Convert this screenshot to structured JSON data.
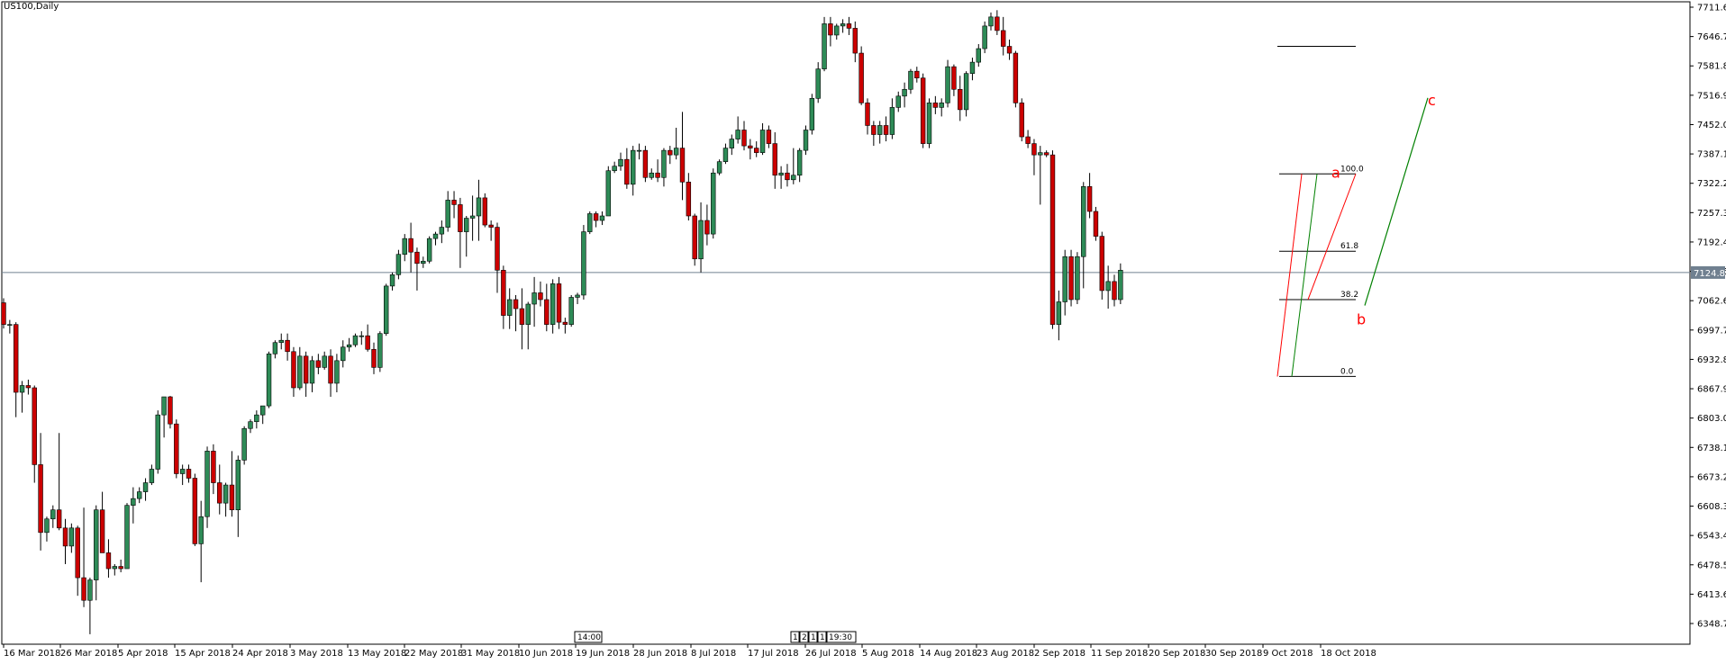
{
  "header": {
    "title": "US100,Daily"
  },
  "colors": {
    "bull": "#2e8b57",
    "bear": "#cc0000",
    "wick": "#000000",
    "grid_line": "#708090",
    "current_label_bg": "#708090",
    "wave_label": "#ff0000",
    "projection": "#008000"
  },
  "chart_data": {
    "type": "candlestick",
    "title": "US100,Daily",
    "ylim": [
      6300,
      7720
    ],
    "y_ticks": [
      "7711.60",
      "7646.70",
      "7581.80",
      "7516.90",
      "7452.00",
      "7387.10",
      "7322.20",
      "7257.30",
      "7192.40",
      "7127.50",
      "7062.60",
      "6997.70",
      "6932.80",
      "6867.90",
      "6803.00",
      "6738.10",
      "6673.20",
      "6608.30",
      "6543.40",
      "6478.50",
      "6413.60",
      "6348.70"
    ],
    "x_ticks": [
      "16 Mar 2018",
      "26 Mar 2018",
      "5 Apr 2018",
      "15 Apr 2018",
      "24 Apr 2018",
      "3 May 2018",
      "13 May 2018",
      "22 May 2018",
      "31 May 2018",
      "10 Jun 2018",
      "19 Jun 2018",
      "28 Jun 2018",
      "8 Jul 2018",
      "17 Jul 2018",
      "26 Jul 2018",
      "5 Aug 2018",
      "14 Aug 2018",
      "23 Aug 2018",
      "2 Sep 2018",
      "11 Sep 2018",
      "20 Sep 2018",
      "30 Sep 2018",
      "9 Oct 2018",
      "18 Oct 2018"
    ],
    "current_price": "7124.87",
    "fib_levels": [
      {
        "label": "100.0",
        "price": 7343
      },
      {
        "label": "61.8",
        "price": 7172
      },
      {
        "label": "38.2",
        "price": 7065
      },
      {
        "label": "0.0",
        "price": 6895
      }
    ],
    "projection_line": {
      "start_price": 7052,
      "end_price": 7511
    },
    "horizontal_line": {
      "price": 7625
    },
    "wave_labels": [
      {
        "text": "a",
        "price": 7345
      },
      {
        "text": "b",
        "price": 7020
      },
      {
        "text": "c",
        "price": 7505
      }
    ],
    "time_markers": [
      "14:00",
      "1",
      "2",
      "1",
      "1",
      "19:30"
    ],
    "candles": [
      [
        7058,
        7068,
        7001,
        7010
      ],
      [
        7010,
        7020,
        6990,
        7010
      ],
      [
        7010,
        7015,
        6805,
        6860
      ],
      [
        6860,
        6885,
        6815,
        6875
      ],
      [
        6875,
        6888,
        6855,
        6870
      ],
      [
        6870,
        6875,
        6660,
        6700
      ],
      [
        6700,
        6770,
        6510,
        6550
      ],
      [
        6550,
        6585,
        6530,
        6580
      ],
      [
        6580,
        6610,
        6560,
        6600
      ],
      [
        6600,
        6770,
        6555,
        6560
      ],
      [
        6560,
        6580,
        6480,
        6520
      ],
      [
        6520,
        6570,
        6505,
        6560
      ],
      [
        6560,
        6565,
        6410,
        6450
      ],
      [
        6450,
        6605,
        6385,
        6400
      ],
      [
        6400,
        6450,
        6325,
        6445
      ],
      [
        6445,
        6610,
        6400,
        6600
      ],
      [
        6600,
        6640,
        6505,
        6505
      ],
      [
        6505,
        6535,
        6450,
        6470
      ],
      [
        6470,
        6480,
        6455,
        6475
      ],
      [
        6475,
        6490,
        6462,
        6470
      ],
      [
        6470,
        6615,
        6470,
        6610
      ],
      [
        6610,
        6650,
        6570,
        6625
      ],
      [
        6625,
        6650,
        6615,
        6640
      ],
      [
        6640,
        6670,
        6620,
        6660
      ],
      [
        6660,
        6700,
        6655,
        6690
      ],
      [
        6690,
        6820,
        6680,
        6810
      ],
      [
        6810,
        6850,
        6760,
        6850
      ],
      [
        6850,
        6852,
        6780,
        6790
      ],
      [
        6790,
        6800,
        6670,
        6680
      ],
      [
        6680,
        6700,
        6655,
        6690
      ],
      [
        6690,
        6700,
        6660,
        6670
      ],
      [
        6670,
        6680,
        6520,
        6525
      ],
      [
        6525,
        6620,
        6440,
        6585
      ],
      [
        6585,
        6740,
        6560,
        6730
      ],
      [
        6730,
        6745,
        6635,
        6660
      ],
      [
        6660,
        6700,
        6590,
        6615
      ],
      [
        6615,
        6660,
        6585,
        6655
      ],
      [
        6655,
        6730,
        6585,
        6600
      ],
      [
        6600,
        6720,
        6540,
        6710
      ],
      [
        6710,
        6785,
        6700,
        6780
      ],
      [
        6780,
        6800,
        6770,
        6795
      ],
      [
        6795,
        6820,
        6780,
        6810
      ],
      [
        6810,
        6830,
        6790,
        6830
      ],
      [
        6830,
        6950,
        6825,
        6945
      ],
      [
        6945,
        6975,
        6935,
        6970
      ],
      [
        6970,
        6990,
        6955,
        6975
      ],
      [
        6975,
        6990,
        6930,
        6950
      ],
      [
        6950,
        6960,
        6850,
        6870
      ],
      [
        6870,
        6960,
        6865,
        6940
      ],
      [
        6940,
        6950,
        6850,
        6880
      ],
      [
        6880,
        6940,
        6860,
        6930
      ],
      [
        6930,
        6945,
        6900,
        6915
      ],
      [
        6915,
        6950,
        6910,
        6940
      ],
      [
        6940,
        6955,
        6850,
        6880
      ],
      [
        6880,
        6945,
        6860,
        6930
      ],
      [
        6930,
        6975,
        6915,
        6960
      ],
      [
        6960,
        6980,
        6950,
        6965
      ],
      [
        6965,
        6990,
        6960,
        6985
      ],
      [
        6985,
        6995,
        6965,
        6985
      ],
      [
        6985,
        7010,
        6950,
        6955
      ],
      [
        6955,
        6970,
        6900,
        6915
      ],
      [
        6915,
        6995,
        6905,
        6990
      ],
      [
        6990,
        7100,
        6985,
        7095
      ],
      [
        7095,
        7125,
        7085,
        7120
      ],
      [
        7120,
        7175,
        7110,
        7165
      ],
      [
        7165,
        7210,
        7150,
        7200
      ],
      [
        7200,
        7235,
        7125,
        7170
      ],
      [
        7170,
        7180,
        7085,
        7145
      ],
      [
        7145,
        7160,
        7135,
        7150
      ],
      [
        7150,
        7205,
        7145,
        7200
      ],
      [
        7200,
        7215,
        7185,
        7210
      ],
      [
        7210,
        7240,
        7190,
        7225
      ],
      [
        7225,
        7305,
        7215,
        7285
      ],
      [
        7285,
        7305,
        7245,
        7275
      ],
      [
        7275,
        7290,
        7135,
        7215
      ],
      [
        7215,
        7250,
        7160,
        7245
      ],
      [
        7245,
        7295,
        7195,
        7250
      ],
      [
        7250,
        7330,
        7195,
        7290
      ],
      [
        7290,
        7300,
        7225,
        7230
      ],
      [
        7230,
        7240,
        7195,
        7225
      ],
      [
        7225,
        7235,
        7080,
        7130
      ],
      [
        7130,
        7140,
        7000,
        7030
      ],
      [
        7030,
        7090,
        7000,
        7065
      ],
      [
        7065,
        7075,
        6995,
        7045
      ],
      [
        7045,
        7090,
        6955,
        7010
      ],
      [
        7010,
        7060,
        6955,
        7055
      ],
      [
        7055,
        7115,
        7005,
        7080
      ],
      [
        7080,
        7105,
        7050,
        7065
      ],
      [
        7065,
        7100,
        6995,
        7010
      ],
      [
        7010,
        7110,
        6990,
        7100
      ],
      [
        7100,
        7115,
        7000,
        7015
      ],
      [
        7015,
        7025,
        6990,
        7010
      ],
      [
        7010,
        7075,
        7005,
        7070
      ],
      [
        7070,
        7080,
        7055,
        7075
      ],
      [
        7075,
        7230,
        7065,
        7215
      ],
      [
        7215,
        7260,
        7210,
        7255
      ],
      [
        7255,
        7260,
        7225,
        7240
      ],
      [
        7240,
        7260,
        7230,
        7250
      ],
      [
        7250,
        7360,
        7250,
        7350
      ],
      [
        7350,
        7370,
        7345,
        7360
      ],
      [
        7360,
        7390,
        7350,
        7375
      ],
      [
        7375,
        7400,
        7310,
        7320
      ],
      [
        7320,
        7405,
        7295,
        7395
      ],
      [
        7395,
        7410,
        7375,
        7395
      ],
      [
        7395,
        7405,
        7325,
        7335
      ],
      [
        7335,
        7355,
        7330,
        7345
      ],
      [
        7345,
        7375,
        7325,
        7335
      ],
      [
        7335,
        7400,
        7315,
        7395
      ],
      [
        7395,
        7405,
        7365,
        7385
      ],
      [
        7385,
        7445,
        7375,
        7400
      ],
      [
        7400,
        7480,
        7285,
        7325
      ],
      [
        7325,
        7345,
        7240,
        7250
      ],
      [
        7250,
        7255,
        7140,
        7155
      ],
      [
        7155,
        7280,
        7125,
        7240
      ],
      [
        7240,
        7275,
        7185,
        7210
      ],
      [
        7210,
        7355,
        7200,
        7345
      ],
      [
        7345,
        7375,
        7340,
        7370
      ],
      [
        7370,
        7410,
        7365,
        7400
      ],
      [
        7400,
        7430,
        7385,
        7420
      ],
      [
        7420,
        7470,
        7410,
        7440
      ],
      [
        7440,
        7460,
        7395,
        7405
      ],
      [
        7405,
        7420,
        7375,
        7400
      ],
      [
        7400,
        7415,
        7380,
        7390
      ],
      [
        7390,
        7455,
        7385,
        7440
      ],
      [
        7440,
        7450,
        7400,
        7410
      ],
      [
        7410,
        7435,
        7310,
        7340
      ],
      [
        7340,
        7360,
        7310,
        7345
      ],
      [
        7345,
        7365,
        7315,
        7330
      ],
      [
        7330,
        7400,
        7320,
        7340
      ],
      [
        7340,
        7400,
        7325,
        7395
      ],
      [
        7395,
        7450,
        7385,
        7440
      ],
      [
        7440,
        7520,
        7430,
        7510
      ],
      [
        7510,
        7590,
        7500,
        7575
      ],
      [
        7575,
        7690,
        7570,
        7675
      ],
      [
        7675,
        7690,
        7625,
        7650
      ],
      [
        7650,
        7675,
        7640,
        7670
      ],
      [
        7670,
        7685,
        7655,
        7675
      ],
      [
        7675,
        7690,
        7650,
        7665
      ],
      [
        7665,
        7680,
        7590,
        7610
      ],
      [
        7610,
        7625,
        7495,
        7500
      ],
      [
        7500,
        7510,
        7430,
        7450
      ],
      [
        7450,
        7460,
        7405,
        7430
      ],
      [
        7430,
        7460,
        7410,
        7450
      ],
      [
        7450,
        7470,
        7415,
        7430
      ],
      [
        7430,
        7510,
        7420,
        7490
      ],
      [
        7490,
        7525,
        7480,
        7515
      ],
      [
        7515,
        7545,
        7490,
        7530
      ],
      [
        7530,
        7575,
        7520,
        7570
      ],
      [
        7570,
        7580,
        7545,
        7555
      ],
      [
        7555,
        7565,
        7400,
        7410
      ],
      [
        7410,
        7510,
        7400,
        7500
      ],
      [
        7500,
        7515,
        7475,
        7490
      ],
      [
        7490,
        7510,
        7470,
        7500
      ],
      [
        7500,
        7595,
        7490,
        7580
      ],
      [
        7580,
        7585,
        7515,
        7530
      ],
      [
        7530,
        7560,
        7460,
        7485
      ],
      [
        7485,
        7570,
        7470,
        7565
      ],
      [
        7565,
        7600,
        7550,
        7590
      ],
      [
        7590,
        7630,
        7580,
        7620
      ],
      [
        7620,
        7680,
        7610,
        7670
      ],
      [
        7670,
        7700,
        7660,
        7690
      ],
      [
        7690,
        7705,
        7650,
        7660
      ],
      [
        7660,
        7690,
        7605,
        7625
      ],
      [
        7625,
        7640,
        7595,
        7610
      ],
      [
        7610,
        7615,
        7490,
        7500
      ],
      [
        7500,
        7510,
        7415,
        7425
      ],
      [
        7425,
        7440,
        7400,
        7410
      ],
      [
        7410,
        7420,
        7340,
        7385
      ],
      [
        7385,
        7405,
        7275,
        7390
      ],
      [
        7390,
        7395,
        7380,
        7385
      ],
      [
        7385,
        7395,
        7000,
        7010
      ],
      [
        7010,
        7085,
        6975,
        7060
      ],
      [
        7060,
        7175,
        7030,
        7160
      ],
      [
        7160,
        7175,
        7050,
        7065
      ],
      [
        7065,
        7170,
        7055,
        7160
      ],
      [
        7160,
        7325,
        7090,
        7315
      ],
      [
        7315,
        7345,
        7245,
        7260
      ],
      [
        7260,
        7270,
        7195,
        7205
      ],
      [
        7205,
        7215,
        7065,
        7085
      ],
      [
        7085,
        7140,
        7045,
        7105
      ],
      [
        7105,
        7120,
        7050,
        7065
      ],
      [
        7065,
        7145,
        7055,
        7130
      ]
    ]
  }
}
